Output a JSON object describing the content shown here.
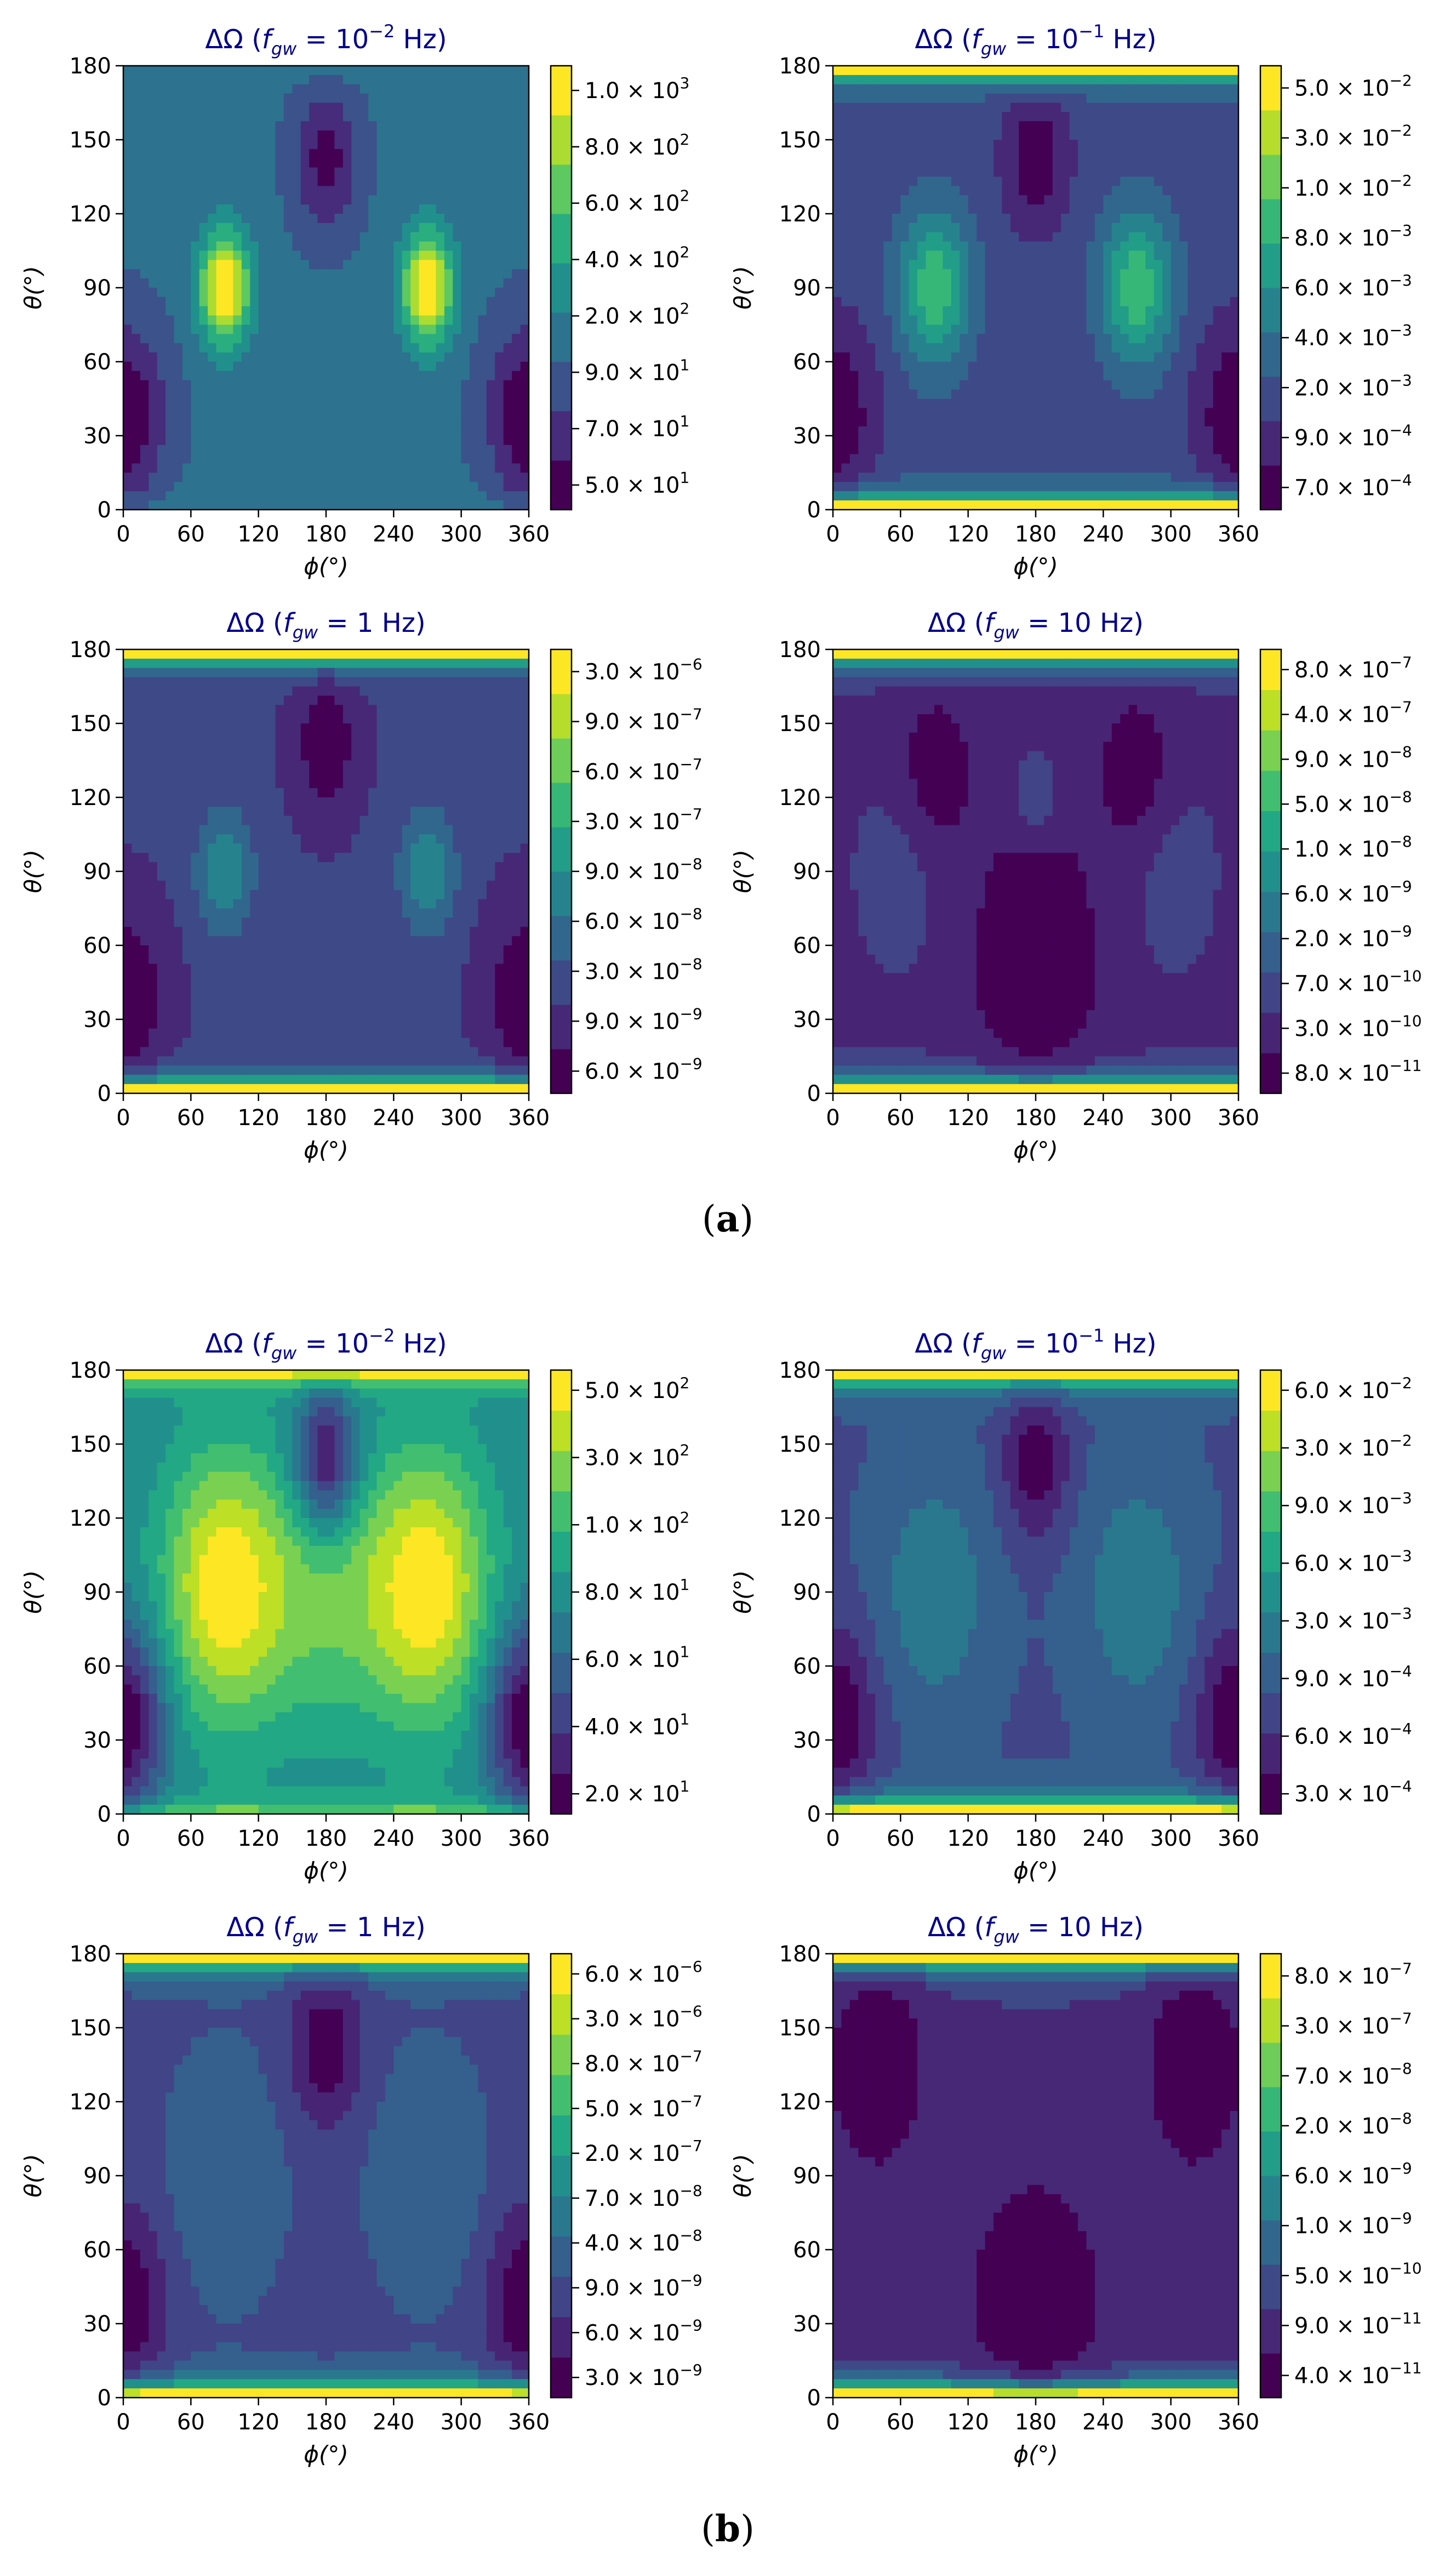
{
  "figure": {
    "groups": [
      {
        "label_open": "(",
        "label_letter": "a",
        "label_close": ")"
      },
      {
        "label_open": "(",
        "label_letter": "b",
        "label_close": ")"
      }
    ],
    "colors": {
      "title": "#00008b",
      "viridis": [
        "#440154",
        "#482475",
        "#414487",
        "#355f8d",
        "#2a788e",
        "#21908d",
        "#22a884",
        "#42be71",
        "#7ad151",
        "#bddf26",
        "#fde725"
      ]
    }
  },
  "chart_data": [
    {
      "type": "heatmap",
      "group": "a",
      "title_prefix": "ΔΩ (",
      "title_f": "f",
      "title_sub": "gw",
      "title_eq": " = ",
      "title_base": "10",
      "title_exp": "−2",
      "title_unit": " Hz)",
      "xlabel": "ϕ(°)",
      "ylabel": "θ(°)",
      "x_ticks": [
        "0",
        "60",
        "120",
        "180",
        "240",
        "300",
        "360"
      ],
      "y_ticks": [
        "0",
        "30",
        "60",
        "90",
        "120",
        "150",
        "180"
      ],
      "xlim": [
        0,
        360
      ],
      "ylim": [
        0,
        180
      ],
      "colorbar_ticks": [
        {
          "m": "5.0",
          "e": "1"
        },
        {
          "m": "7.0",
          "e": "1"
        },
        {
          "m": "9.0",
          "e": "1"
        },
        {
          "m": "2.0",
          "e": "2"
        },
        {
          "m": "4.0",
          "e": "2"
        },
        {
          "m": "6.0",
          "e": "2"
        },
        {
          "m": "8.0",
          "e": "2"
        },
        {
          "m": "1.0",
          "e": "3"
        }
      ],
      "n_levels": 9,
      "field": {
        "base": 0.38,
        "low": [
          {
            "t": 38,
            "p": 0,
            "a": 0.34,
            "w": 26
          },
          {
            "t": 38,
            "p": 360,
            "a": 0.34,
            "w": 26
          },
          {
            "t": 142,
            "p": 180,
            "a": 0.28,
            "w": 20
          }
        ],
        "high": [
          {
            "t": 90,
            "p": 90,
            "a": 0.62,
            "w": 16
          },
          {
            "t": 90,
            "p": 270,
            "a": 0.62,
            "w": 16
          }
        ],
        "pole_top": 0.1,
        "pole_bot": 0.1
      }
    },
    {
      "type": "heatmap",
      "group": "a",
      "title_prefix": "ΔΩ (",
      "title_f": "f",
      "title_sub": "gw",
      "title_eq": " = ",
      "title_base": "10",
      "title_exp": "−1",
      "title_unit": " Hz)",
      "xlabel": "ϕ(°)",
      "ylabel": "θ(°)",
      "x_ticks": [
        "0",
        "60",
        "120",
        "180",
        "240",
        "300",
        "360"
      ],
      "y_ticks": [
        "0",
        "30",
        "60",
        "90",
        "120",
        "150",
        "180"
      ],
      "xlim": [
        0,
        360
      ],
      "ylim": [
        0,
        180
      ],
      "colorbar_ticks": [
        {
          "m": "7.0",
          "e": "−4"
        },
        {
          "m": "9.0",
          "e": "−4"
        },
        {
          "m": "2.0",
          "e": "−3"
        },
        {
          "m": "4.0",
          "e": "−3"
        },
        {
          "m": "6.0",
          "e": "−3"
        },
        {
          "m": "8.0",
          "e": "−3"
        },
        {
          "m": "1.0",
          "e": "−2"
        },
        {
          "m": "3.0",
          "e": "−2"
        },
        {
          "m": "5.0",
          "e": "−2"
        }
      ],
      "n_levels": 10,
      "field": {
        "base": 0.3,
        "low": [
          {
            "t": 38,
            "p": 0,
            "a": 0.22,
            "w": 26
          },
          {
            "t": 38,
            "p": 360,
            "a": 0.22,
            "w": 26
          },
          {
            "t": 142,
            "p": 180,
            "a": 0.2,
            "w": 20
          }
        ],
        "high": [
          {
            "t": 90,
            "p": 90,
            "a": 0.38,
            "w": 22
          },
          {
            "t": 90,
            "p": 270,
            "a": 0.38,
            "w": 22
          }
        ],
        "pole_top": 1.0,
        "pole_bot": 1.0
      }
    },
    {
      "type": "heatmap",
      "group": "a",
      "title_prefix": "ΔΩ (",
      "title_f": "f",
      "title_sub": "gw",
      "title_eq": " = ",
      "title_base": "",
      "title_exp": "",
      "title_unit": "1 Hz)",
      "xlabel": "ϕ(°)",
      "ylabel": "θ(°)",
      "x_ticks": [
        "0",
        "60",
        "120",
        "180",
        "240",
        "300",
        "360"
      ],
      "y_ticks": [
        "0",
        "30",
        "60",
        "90",
        "120",
        "150",
        "180"
      ],
      "xlim": [
        0,
        360
      ],
      "ylim": [
        0,
        180
      ],
      "colorbar_ticks": [
        {
          "m": "6.0",
          "e": "−9"
        },
        {
          "m": "9.0",
          "e": "−9"
        },
        {
          "m": "3.0",
          "e": "−8"
        },
        {
          "m": "6.0",
          "e": "−8"
        },
        {
          "m": "9.0",
          "e": "−8"
        },
        {
          "m": "3.0",
          "e": "−7"
        },
        {
          "m": "6.0",
          "e": "−7"
        },
        {
          "m": "9.0",
          "e": "−7"
        },
        {
          "m": "3.0",
          "e": "−6"
        }
      ],
      "n_levels": 10,
      "field": {
        "base": 0.22,
        "low": [
          {
            "t": 38,
            "p": 0,
            "a": 0.18,
            "w": 26
          },
          {
            "t": 38,
            "p": 360,
            "a": 0.18,
            "w": 26
          },
          {
            "t": 142,
            "p": 180,
            "a": 0.16,
            "w": 20
          }
        ],
        "high": [
          {
            "t": 90,
            "p": 90,
            "a": 0.24,
            "w": 18
          },
          {
            "t": 90,
            "p": 270,
            "a": 0.24,
            "w": 18
          }
        ],
        "pole_top": 1.0,
        "pole_bot": 1.0
      }
    },
    {
      "type": "heatmap",
      "group": "a",
      "title_prefix": "ΔΩ (",
      "title_f": "f",
      "title_sub": "gw",
      "title_eq": " = ",
      "title_base": "",
      "title_exp": "",
      "title_unit": "10 Hz)",
      "xlabel": "ϕ(°)",
      "ylabel": "θ(°)",
      "x_ticks": [
        "0",
        "60",
        "120",
        "180",
        "240",
        "300",
        "360"
      ],
      "y_ticks": [
        "0",
        "30",
        "60",
        "90",
        "120",
        "150",
        "180"
      ],
      "xlim": [
        0,
        360
      ],
      "ylim": [
        0,
        180
      ],
      "colorbar_ticks": [
        {
          "m": "8.0",
          "e": "−11"
        },
        {
          "m": "3.0",
          "e": "−10"
        },
        {
          "m": "7.0",
          "e": "−10"
        },
        {
          "m": "2.0",
          "e": "−9"
        },
        {
          "m": "6.0",
          "e": "−9"
        },
        {
          "m": "1.0",
          "e": "−8"
        },
        {
          "m": "5.0",
          "e": "−8"
        },
        {
          "m": "9.0",
          "e": "−8"
        },
        {
          "m": "4.0",
          "e": "−7"
        },
        {
          "m": "8.0",
          "e": "−7"
        }
      ],
      "n_levels": 11,
      "field": {
        "base": 0.18,
        "low": [
          {
            "t": 55,
            "p": 180,
            "a": 0.12,
            "w": 40
          },
          {
            "t": 130,
            "p": 90,
            "a": 0.1,
            "w": 24
          },
          {
            "t": 130,
            "p": 270,
            "a": 0.1,
            "w": 24
          }
        ],
        "high": [
          {
            "t": 120,
            "p": 180,
            "a": 0.1,
            "w": 14
          },
          {
            "t": 90,
            "p": 60,
            "a": 0.06,
            "w": 30
          },
          {
            "t": 90,
            "p": 300,
            "a": 0.06,
            "w": 30
          }
        ],
        "pole_top": 1.0,
        "pole_bot": 1.0
      }
    },
    {
      "type": "heatmap",
      "group": "b",
      "title_prefix": "ΔΩ (",
      "title_f": "f",
      "title_sub": "gw",
      "title_eq": " = ",
      "title_base": "10",
      "title_exp": "−2",
      "title_unit": " Hz)",
      "xlabel": "ϕ(°)",
      "ylabel": "θ(°)",
      "x_ticks": [
        "0",
        "60",
        "120",
        "180",
        "240",
        "300",
        "360"
      ],
      "y_ticks": [
        "0",
        "30",
        "60",
        "90",
        "120",
        "150",
        "180"
      ],
      "xlim": [
        0,
        360
      ],
      "ylim": [
        0,
        180
      ],
      "colorbar_ticks": [
        {
          "m": "2.0",
          "e": "1"
        },
        {
          "m": "4.0",
          "e": "1"
        },
        {
          "m": "6.0",
          "e": "1"
        },
        {
          "m": "8.0",
          "e": "1"
        },
        {
          "m": "1.0",
          "e": "2"
        },
        {
          "m": "3.0",
          "e": "2"
        },
        {
          "m": "5.0",
          "e": "2"
        }
      ],
      "n_levels": 11,
      "field": {
        "base": 0.5,
        "low": [
          {
            "t": 38,
            "p": 0,
            "a": 0.42,
            "w": 26
          },
          {
            "t": 38,
            "p": 360,
            "a": 0.42,
            "w": 26
          },
          {
            "t": 142,
            "p": 180,
            "a": 0.4,
            "w": 20
          }
        ],
        "high": [
          {
            "t": 92,
            "p": 90,
            "a": 0.45,
            "w": 40
          },
          {
            "t": 92,
            "p": 270,
            "a": 0.45,
            "w": 40
          },
          {
            "t": 88,
            "p": 180,
            "a": 0.2,
            "w": 40
          }
        ],
        "pole_top": 0.6,
        "pole_bot": 0.3
      }
    },
    {
      "type": "heatmap",
      "group": "b",
      "title_prefix": "ΔΩ (",
      "title_f": "f",
      "title_sub": "gw",
      "title_eq": " = ",
      "title_base": "10",
      "title_exp": "−1",
      "title_unit": " Hz)",
      "xlabel": "ϕ(°)",
      "ylabel": "θ(°)",
      "x_ticks": [
        "0",
        "60",
        "120",
        "180",
        "240",
        "300",
        "360"
      ],
      "y_ticks": [
        "0",
        "30",
        "60",
        "90",
        "120",
        "150",
        "180"
      ],
      "xlim": [
        0,
        360
      ],
      "ylim": [
        0,
        180
      ],
      "colorbar_ticks": [
        {
          "m": "3.0",
          "e": "−4"
        },
        {
          "m": "6.0",
          "e": "−4"
        },
        {
          "m": "9.0",
          "e": "−4"
        },
        {
          "m": "3.0",
          "e": "−3"
        },
        {
          "m": "6.0",
          "e": "−3"
        },
        {
          "m": "9.0",
          "e": "−3"
        },
        {
          "m": "3.0",
          "e": "−2"
        },
        {
          "m": "6.0",
          "e": "−2"
        }
      ],
      "n_levels": 11,
      "field": {
        "base": 0.32,
        "low": [
          {
            "t": 38,
            "p": 0,
            "a": 0.24,
            "w": 26
          },
          {
            "t": 38,
            "p": 360,
            "a": 0.24,
            "w": 26
          },
          {
            "t": 142,
            "p": 180,
            "a": 0.22,
            "w": 20
          }
        ],
        "high": [
          {
            "t": 90,
            "p": 90,
            "a": 0.16,
            "w": 36
          },
          {
            "t": 90,
            "p": 270,
            "a": 0.16,
            "w": 36
          }
        ],
        "pole_top": 1.0,
        "pole_bot": 1.0
      }
    },
    {
      "type": "heatmap",
      "group": "b",
      "title_prefix": "ΔΩ (",
      "title_f": "f",
      "title_sub": "gw",
      "title_eq": " = ",
      "title_base": "",
      "title_exp": "",
      "title_unit": "1 Hz)",
      "xlabel": "ϕ(°)",
      "ylabel": "θ(°)",
      "x_ticks": [
        "0",
        "60",
        "120",
        "180",
        "240",
        "300",
        "360"
      ],
      "y_ticks": [
        "0",
        "30",
        "60",
        "90",
        "120",
        "150",
        "180"
      ],
      "xlim": [
        0,
        360
      ],
      "ylim": [
        0,
        180
      ],
      "colorbar_ticks": [
        {
          "m": "3.0",
          "e": "−9"
        },
        {
          "m": "6.0",
          "e": "−9"
        },
        {
          "m": "9.0",
          "e": "−9"
        },
        {
          "m": "4.0",
          "e": "−8"
        },
        {
          "m": "7.0",
          "e": "−8"
        },
        {
          "m": "2.0",
          "e": "−7"
        },
        {
          "m": "5.0",
          "e": "−7"
        },
        {
          "m": "8.0",
          "e": "−7"
        },
        {
          "m": "3.0",
          "e": "−6"
        },
        {
          "m": "6.0",
          "e": "−6"
        }
      ],
      "n_levels": 11,
      "field": {
        "base": 0.26,
        "low": [
          {
            "t": 38,
            "p": 0,
            "a": 0.22,
            "w": 26
          },
          {
            "t": 38,
            "p": 360,
            "a": 0.22,
            "w": 26
          },
          {
            "t": 142,
            "p": 180,
            "a": 0.2,
            "w": 22
          }
        ],
        "high": [
          {
            "t": 90,
            "p": 90,
            "a": 0.1,
            "w": 36
          },
          {
            "t": 90,
            "p": 270,
            "a": 0.1,
            "w": 36
          }
        ],
        "pole_top": 1.0,
        "pole_bot": 1.0
      }
    },
    {
      "type": "heatmap",
      "group": "b",
      "title_prefix": "ΔΩ (",
      "title_f": "f",
      "title_sub": "gw",
      "title_eq": " = ",
      "title_base": "",
      "title_exp": "",
      "title_unit": "10 Hz)",
      "xlabel": "ϕ(°)",
      "ylabel": "θ(°)",
      "x_ticks": [
        "0",
        "60",
        "120",
        "180",
        "240",
        "300",
        "360"
      ],
      "y_ticks": [
        "0",
        "30",
        "60",
        "90",
        "120",
        "150",
        "180"
      ],
      "xlim": [
        0,
        360
      ],
      "ylim": [
        0,
        180
      ],
      "colorbar_ticks": [
        {
          "m": "4.0",
          "e": "−11"
        },
        {
          "m": "9.0",
          "e": "−11"
        },
        {
          "m": "5.0",
          "e": "−10"
        },
        {
          "m": "1.0",
          "e": "−9"
        },
        {
          "m": "6.0",
          "e": "−9"
        },
        {
          "m": "2.0",
          "e": "−8"
        },
        {
          "m": "7.0",
          "e": "−8"
        },
        {
          "m": "3.0",
          "e": "−7"
        },
        {
          "m": "8.0",
          "e": "−7"
        }
      ],
      "n_levels": 10,
      "field": {
        "base": 0.24,
        "low": [
          {
            "t": 40,
            "p": 180,
            "a": 0.16,
            "w": 45
          },
          {
            "t": 135,
            "p": 40,
            "a": 0.14,
            "w": 30
          },
          {
            "t": 135,
            "p": 320,
            "a": 0.14,
            "w": 30
          }
        ],
        "high": [
          {
            "t": 90,
            "p": 180,
            "a": 0.04,
            "w": 60
          }
        ],
        "pole_top": 1.0,
        "pole_bot": 1.0
      }
    }
  ]
}
